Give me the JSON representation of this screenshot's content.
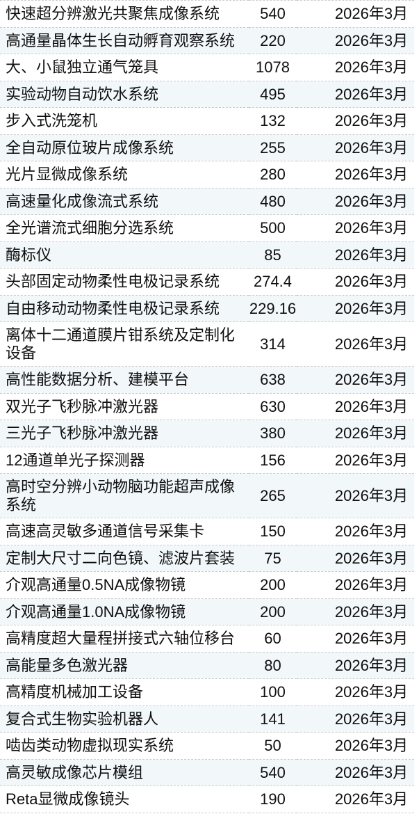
{
  "table": {
    "rows": [
      {
        "name": "快速超分辨激光共聚焦成像系统",
        "amount": "540",
        "date": "2026年3月"
      },
      {
        "name": "高通量晶体生长自动孵育观察系统",
        "amount": "220",
        "date": "2026年3月"
      },
      {
        "name": "大、小鼠独立通气笼具",
        "amount": "1078",
        "date": "2026年3月"
      },
      {
        "name": "实验动物自动饮水系统",
        "amount": "495",
        "date": "2026年3月"
      },
      {
        "name": "步入式洗笼机",
        "amount": "132",
        "date": "2026年3月"
      },
      {
        "name": "全自动原位玻片成像系统",
        "amount": "255",
        "date": "2026年3月"
      },
      {
        "name": "光片显微成像系统",
        "amount": "280",
        "date": "2026年3月"
      },
      {
        "name": "高速量化成像流式系统",
        "amount": "480",
        "date": "2026年3月"
      },
      {
        "name": "全光谱流式细胞分选系统",
        "amount": "500",
        "date": "2026年3月"
      },
      {
        "name": "酶标仪",
        "amount": "85",
        "date": "2026年3月"
      },
      {
        "name": "头部固定动物柔性电极记录系统",
        "amount": "274.4",
        "date": "2026年3月"
      },
      {
        "name": "自由移动动物柔性电极记录系统",
        "amount": "229.16",
        "date": "2026年3月"
      },
      {
        "name": "离体十二通道膜片钳系统及定制化设备",
        "amount": "314",
        "date": "2026年3月"
      },
      {
        "name": "高性能数据分析、建模平台",
        "amount": "638",
        "date": "2026年3月"
      },
      {
        "name": "双光子飞秒脉冲激光器",
        "amount": "630",
        "date": "2026年3月"
      },
      {
        "name": "三光子飞秒脉冲激光器",
        "amount": "380",
        "date": "2026年3月"
      },
      {
        "name": "12通道单光子探测器",
        "amount": "156",
        "date": "2026年3月"
      },
      {
        "name": "高时空分辨小动物脑功能超声成像系统",
        "amount": "265",
        "date": "2026年3月"
      },
      {
        "name": "高速高灵敏多通道信号采集卡",
        "amount": "150",
        "date": "2026年3月"
      },
      {
        "name": "定制大尺寸二向色镜、滤波片套装",
        "amount": "75",
        "date": "2026年3月"
      },
      {
        "name": "介观高通量0.5NA成像物镜",
        "amount": "200",
        "date": "2026年3月"
      },
      {
        "name": "介观高通量1.0NA成像物镜",
        "amount": "200",
        "date": "2026年3月"
      },
      {
        "name": "高精度超大量程拼接式六轴位移台",
        "amount": "60",
        "date": "2026年3月"
      },
      {
        "name": "高能量多色激光器",
        "amount": "80",
        "date": "2026年3月"
      },
      {
        "name": "高精度机械加工设备",
        "amount": "100",
        "date": "2026年3月"
      },
      {
        "name": "复合式生物实验机器人",
        "amount": "141",
        "date": "2026年3月"
      },
      {
        "name": "啮齿类动物虚拟现实系统",
        "amount": "50",
        "date": "2026年3月"
      },
      {
        "name": "高灵敏成像芯片模组",
        "amount": "540",
        "date": "2026年3月"
      },
      {
        "name": "Reta显微成像镜头",
        "amount": "190",
        "date": "2026年3月"
      }
    ]
  },
  "colors": {
    "background": "#ffffff",
    "alt_row_background": "#f2f7f9",
    "border": "#cbcbcb",
    "text": "#0f0f0f"
  }
}
